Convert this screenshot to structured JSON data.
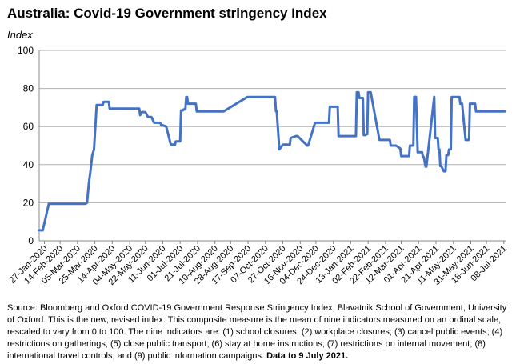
{
  "chart_data": {
    "type": "line",
    "title": "Australia: Covid-19 Government stringency Index",
    "ylabel": "Index",
    "xlabel": "",
    "ylim": [
      0,
      100
    ],
    "yticks": [
      0,
      20,
      40,
      60,
      80,
      100
    ],
    "grid": true,
    "line_color": "#4472C4",
    "x_tick_labels": [
      "27-Jan-2020",
      "14-Feb-2020",
      "05-Mar-2020",
      "25-Mar-2020",
      "14-Apr-2020",
      "04-May-2020",
      "22-May-2020",
      "11-Jun-2020",
      "01-Jul-2020",
      "21-Jul-2020",
      "10-Aug-2020",
      "28-Aug-2020",
      "17-Sep-2020",
      "07-Oct-2020",
      "27-Oct-2020",
      "16-Nov-2020",
      "04-Dec-2020",
      "24-Dec-2020",
      "13-Jan-2021",
      "02-Feb-2021",
      "22-Feb-2021",
      "12-Mar-2021",
      "01-Apr-2021",
      "21-Apr-2021",
      "11-May-2021",
      "31-May-2021",
      "18-Jun-2021",
      "08-Jul-2021"
    ],
    "series": [
      {
        "x": [
          "2020-01-21",
          "2020-01-25",
          "2020-02-01",
          "2020-02-15",
          "2020-03-01",
          "2020-03-14",
          "2020-03-16",
          "2020-03-18",
          "2020-03-20",
          "2020-03-22",
          "2020-03-24",
          "2020-03-27",
          "2020-04-03",
          "2020-04-04",
          "2020-04-10",
          "2020-04-11",
          "2020-05-15",
          "2020-05-16",
          "2020-05-18",
          "2020-05-22",
          "2020-05-25",
          "2020-05-29",
          "2020-06-01",
          "2020-06-05",
          "2020-06-08",
          "2020-06-09",
          "2020-06-15",
          "2020-06-20",
          "2020-06-21",
          "2020-06-25",
          "2020-06-26",
          "2020-07-01",
          "2020-07-02",
          "2020-07-04",
          "2020-07-05",
          "2020-07-07",
          "2020-07-08",
          "2020-07-09",
          "2020-07-10",
          "2020-07-19",
          "2020-07-20",
          "2020-08-20",
          "2020-09-16",
          "2020-09-17",
          "2020-10-18",
          "2020-10-19",
          "2020-10-20",
          "2020-10-23",
          "2020-10-27",
          "2020-11-04",
          "2020-11-05",
          "2020-11-11",
          "2020-11-12",
          "2020-11-13",
          "2020-11-24",
          "2020-11-25",
          "2020-12-03",
          "2020-12-04",
          "2020-12-19",
          "2020-12-20",
          "2020-12-21",
          "2020-12-29",
          "2020-12-30",
          "2021-01-19",
          "2021-01-20",
          "2021-01-22",
          "2021-01-23",
          "2021-01-27",
          "2021-01-28",
          "2021-01-30",
          "2021-01-31",
          "2021-02-01",
          "2021-02-02",
          "2021-02-05",
          "2021-02-06",
          "2021-02-15",
          "2021-02-16",
          "2021-02-27",
          "2021-02-28",
          "2021-03-05",
          "2021-03-06",
          "2021-03-11",
          "2021-03-12",
          "2021-03-21",
          "2021-03-22",
          "2021-03-26",
          "2021-03-27",
          "2021-03-28",
          "2021-03-29",
          "2021-03-31",
          "2021-04-01",
          "2021-04-04",
          "2021-04-05",
          "2021-04-06",
          "2021-04-07",
          "2021-04-09",
          "2021-04-10",
          "2021-04-19",
          "2021-04-20",
          "2021-04-22",
          "2021-04-23",
          "2021-04-24",
          "2021-04-25",
          "2021-04-26",
          "2021-04-27",
          "2021-04-30",
          "2021-05-01",
          "2021-05-02",
          "2021-05-03",
          "2021-05-05",
          "2021-05-06",
          "2021-05-08",
          "2021-05-09",
          "2021-05-10",
          "2021-05-11",
          "2021-05-18",
          "2021-05-19",
          "2021-05-20",
          "2021-05-21",
          "2021-05-25",
          "2021-05-26",
          "2021-05-29",
          "2021-05-30",
          "2021-06-05",
          "2021-06-06",
          "2021-06-25",
          "2021-06-26",
          "2021-06-28",
          "2021-06-29",
          "2021-07-09"
        ],
        "values": [
          5.5,
          5.5,
          19.4,
          19.4,
          19.4,
          19.4,
          20,
          30,
          37,
          45,
          48,
          71.3,
          71.3,
          73,
          73,
          69.4,
          69.4,
          66,
          67.6,
          67.6,
          65,
          65,
          62,
          62,
          62,
          61,
          60,
          51,
          50.5,
          50.5,
          52.2,
          52.2,
          68.5,
          68.5,
          69,
          69,
          75.5,
          75.5,
          72,
          72,
          68,
          68,
          75.5,
          75.5,
          75.5,
          68.1,
          68.1,
          48,
          50.5,
          50.5,
          54,
          55,
          55,
          55,
          50,
          50,
          62,
          62,
          62,
          70.4,
          70.4,
          70.4,
          55,
          55,
          78,
          78,
          75,
          75,
          55.5,
          55.5,
          56,
          56,
          78,
          78,
          75.5,
          53,
          53,
          53,
          50,
          50,
          50,
          48.5,
          44.5,
          44.5,
          50,
          50,
          75.6,
          75.6,
          75.6,
          46.5,
          46.5,
          46.5,
          46.5,
          44,
          44,
          39,
          39,
          75.6,
          54,
          54,
          54,
          48,
          48,
          39.3,
          39.3,
          36.5,
          36.5,
          36.5,
          45,
          45,
          48,
          48,
          75.5,
          75.5,
          75.5,
          75.5,
          72,
          72,
          72,
          53,
          53,
          53,
          72,
          72,
          68,
          68,
          68,
          68,
          68,
          68
        ]
      }
    ]
  },
  "source": {
    "text": "Source: Bloomberg and Oxford COVID-19 Government Response Stringency Index, Blavatnik School of Government, University of Oxford.  This is the new, revised index.  This composite measure is the mean of nine indicators measured on an ordinal scale, rescaled to vary from 0 to 100.    The nine indicators are: (1) school closures; (2) workplace closures; (3) cancel public events; (4) restrictions on gatherings; (5) close public transport; (6) stay at home instructions; (7) restrictions on internal movement; (8) international travel controls; and (9) public information campaigns. ",
    "bold": "Data to 9 July 2021."
  }
}
